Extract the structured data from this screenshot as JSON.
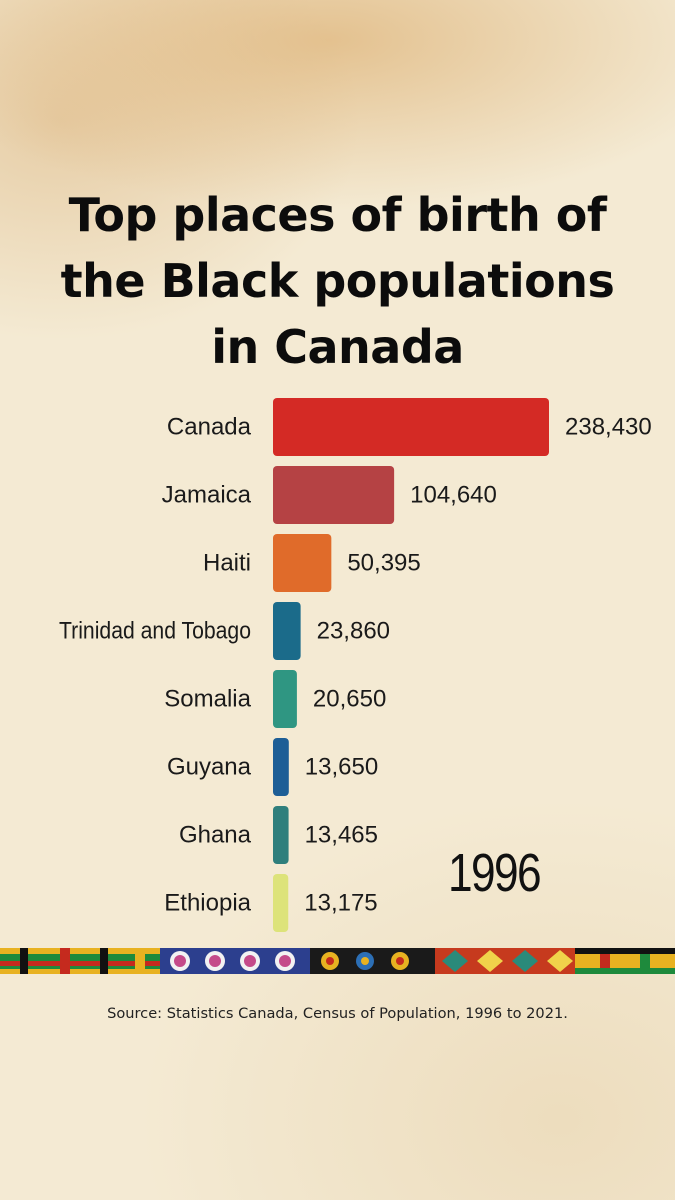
{
  "title_lines": [
    "Top places of birth of",
    "the Black populations",
    "in Canada"
  ],
  "year": "1996",
  "source": "Source: Statistics Canada, Census of Population, 1996 to 2021.",
  "chart_data": {
    "type": "bar",
    "orientation": "horizontal",
    "title": "Top places of birth of the Black populations in Canada",
    "categories": [
      "Canada",
      "Jamaica",
      "Haiti",
      "Trinidad and Tobago",
      "Somalia",
      "Guyana",
      "Ghana",
      "Ethiopia"
    ],
    "values": [
      238430,
      104640,
      50395,
      23860,
      20650,
      13650,
      13465,
      13175
    ],
    "value_labels": [
      "238,430",
      "104,640",
      "50,395",
      "23,860",
      "20,650",
      "13,650",
      "13,465",
      "13,175"
    ],
    "colors": [
      "#d42a25",
      "#b54244",
      "#e06b2a",
      "#1b6b8a",
      "#2f9682",
      "#1d5e96",
      "#2f7f7c",
      "#dde37a"
    ],
    "xlabel": "",
    "ylabel": "",
    "grid": false,
    "legend": "none"
  }
}
